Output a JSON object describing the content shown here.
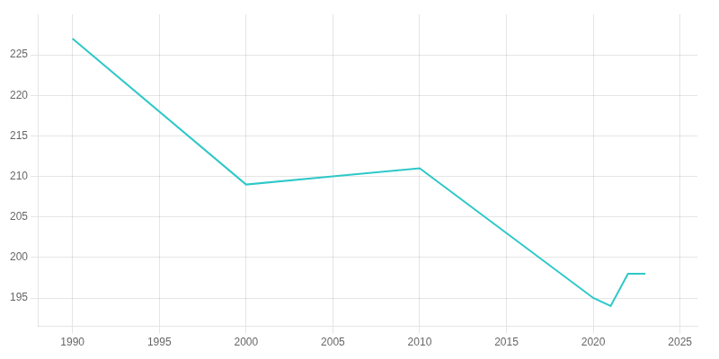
{
  "chart_data": {
    "type": "line",
    "x": [
      1990,
      2000,
      2005,
      2010,
      2020,
      2021,
      2022,
      2023
    ],
    "values": [
      227,
      209,
      210,
      211,
      195,
      194,
      198,
      198
    ],
    "color": "#2ec8c8",
    "xlim": [
      1988,
      2026
    ],
    "ylim": [
      191.5,
      230
    ],
    "xticks": [
      1990,
      1995,
      2000,
      2005,
      2010,
      2015,
      2020,
      2025
    ],
    "yticks": [
      195,
      200,
      205,
      210,
      215,
      220,
      225
    ],
    "grid": true
  }
}
